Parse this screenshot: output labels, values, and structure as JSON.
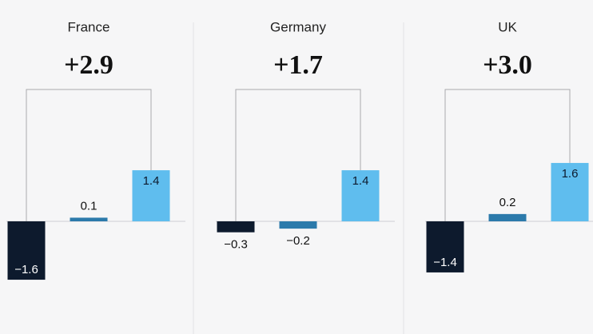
{
  "chart_data": [
    {
      "type": "bar",
      "title": "France",
      "headline": "+2.9",
      "values": [
        -1.6,
        0.1,
        1.4
      ],
      "value_labels": [
        "−1.6",
        "0.1",
        "1.4"
      ],
      "colors": [
        "#0d1a2d",
        "#2c7aab",
        "#5fbdee"
      ],
      "ylim": [
        -3,
        3
      ]
    },
    {
      "type": "bar",
      "title": "Germany",
      "headline": "+1.7",
      "values": [
        -0.3,
        -0.2,
        1.4
      ],
      "value_labels": [
        "−0.3",
        "−0.2",
        "1.4"
      ],
      "colors": [
        "#0d1a2d",
        "#2c7aab",
        "#5fbdee"
      ],
      "ylim": [
        -3,
        3
      ]
    },
    {
      "type": "bar",
      "title": "UK",
      "headline": "+3.0",
      "values": [
        -1.4,
        0.2,
        1.6
      ],
      "value_labels": [
        "−1.4",
        "0.2",
        "1.6"
      ],
      "colors": [
        "#0d1a2d",
        "#2c7aab",
        "#5fbdee"
      ],
      "ylim": [
        -3,
        3
      ]
    }
  ]
}
